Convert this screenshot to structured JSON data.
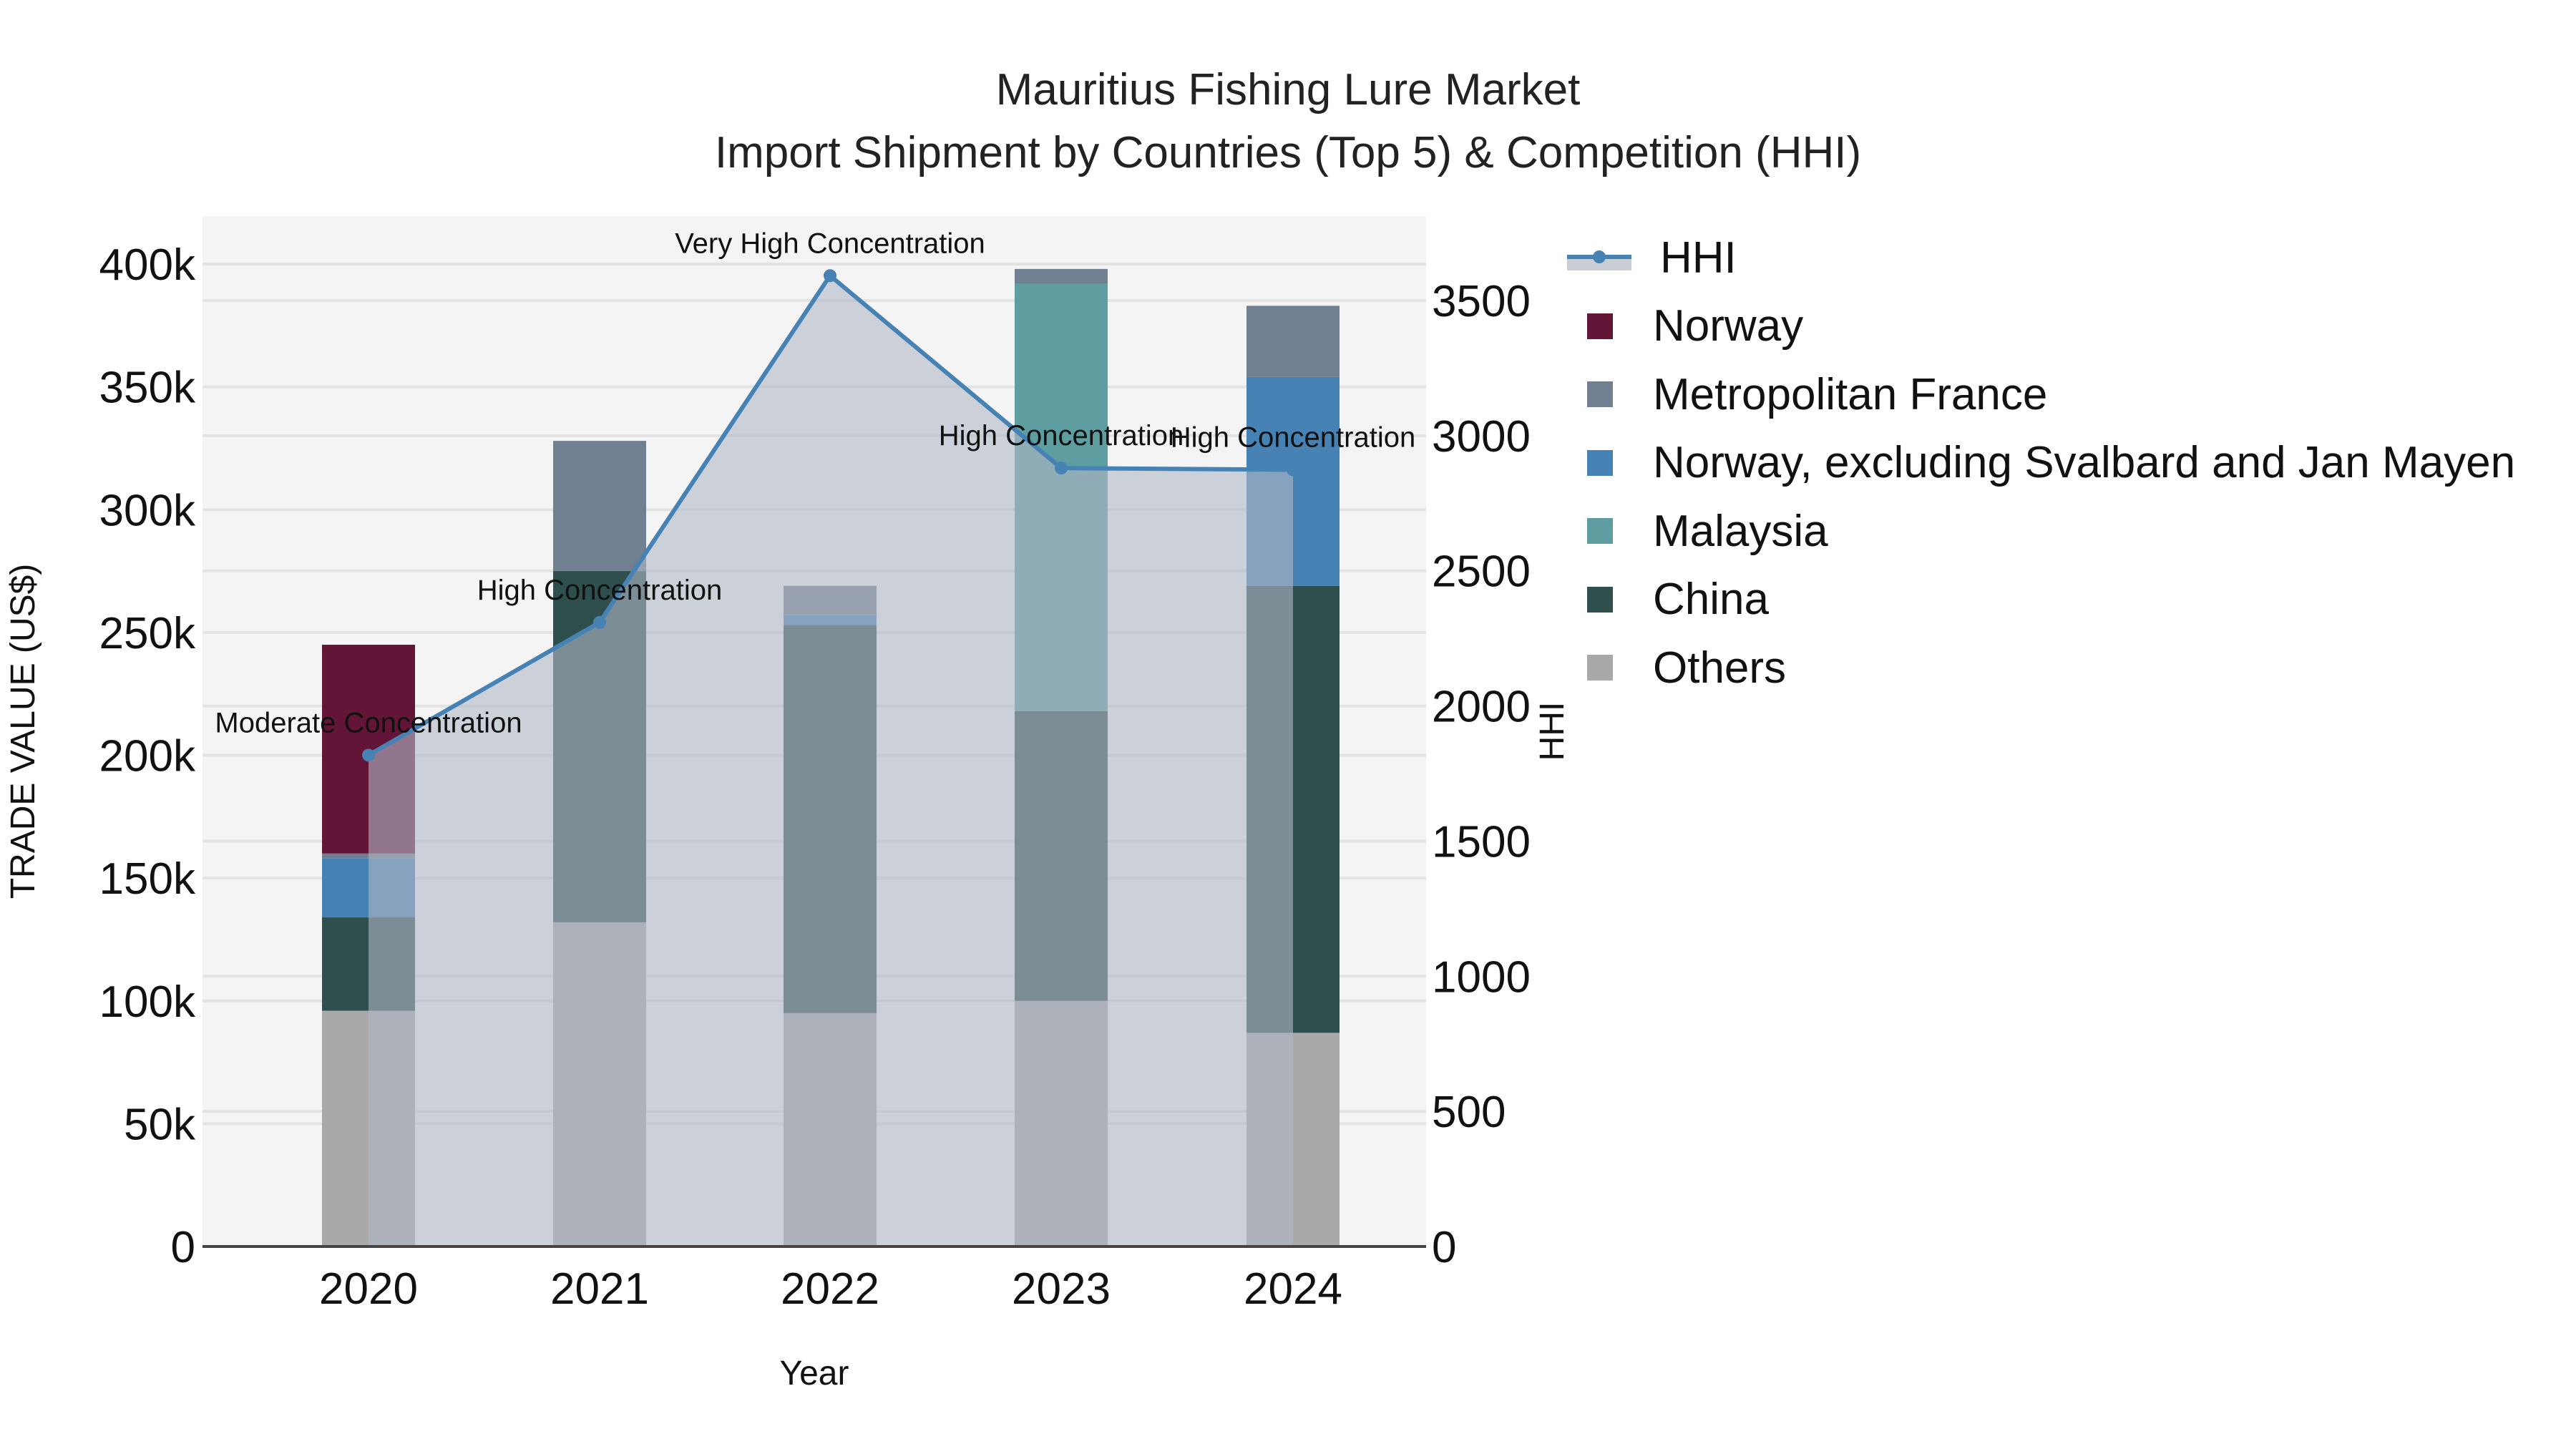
{
  "title": {
    "line1": "Mauritius Fishing Lure Market",
    "line2": "Import Shipment by Countries (Top 5) & Competition (HHI)"
  },
  "axes": {
    "x_title": "Year",
    "y_left_title": "TRADE VALUE (US$)",
    "y_right_title": "HHI",
    "x_ticks": [
      "2020",
      "2021",
      "2022",
      "2023",
      "2024"
    ],
    "y_left_ticks": [
      "0",
      "50k",
      "100k",
      "150k",
      "200k",
      "250k",
      "300k",
      "350k",
      "400k"
    ],
    "y_right_ticks": [
      "0",
      "500",
      "1000",
      "1500",
      "2000",
      "2500",
      "3000",
      "3500"
    ]
  },
  "legend": [
    {
      "label": "HHI",
      "color": "#4682b4",
      "kind": "line"
    },
    {
      "label": "Norway",
      "color": "#631537",
      "kind": "bar"
    },
    {
      "label": "Metropolitan France",
      "color": "#708090",
      "kind": "bar"
    },
    {
      "label": "Norway, excluding Svalbard and Jan Mayen",
      "color": "#4682b4",
      "kind": "bar"
    },
    {
      "label": "Malaysia",
      "color": "#5f9ea0",
      "kind": "bar"
    },
    {
      "label": "China",
      "color": "#2f4f4f",
      "kind": "bar"
    },
    {
      "label": "Others",
      "color": "#a9a9a9",
      "kind": "bar"
    }
  ],
  "annotations": [
    "Moderate Concentration",
    "High Concentration",
    "Very High Concentration",
    "High Concentration",
    "High Concentration"
  ],
  "chart_data": {
    "type": "bar",
    "stacked": true,
    "title": "Mauritius Fishing Lure Market — Import Shipment by Countries (Top 5) & Competition (HHI)",
    "xlabel": "Year",
    "ylabel": "TRADE VALUE (US$)",
    "y2label": "HHI",
    "categories": [
      "2020",
      "2021",
      "2022",
      "2023",
      "2024"
    ],
    "ylim": [
      0,
      420000
    ],
    "y2lim": [
      0,
      3800
    ],
    "grid": true,
    "legend_position": "right",
    "series": [
      {
        "name": "Others",
        "color": "#a9a9a9",
        "values": [
          96000,
          132000,
          95000,
          100000,
          87000
        ]
      },
      {
        "name": "China",
        "color": "#2f4f4f",
        "values": [
          38000,
          143000,
          158000,
          118000,
          182000
        ]
      },
      {
        "name": "Norway, excluding Svalbard and Jan Mayen",
        "color": "#4682b4",
        "values": [
          24000,
          0,
          4000,
          0,
          85000
        ]
      },
      {
        "name": "Malaysia",
        "color": "#5f9ea0",
        "values": [
          0,
          0,
          0,
          174000,
          0
        ]
      },
      {
        "name": "Metropolitan France",
        "color": "#708090",
        "values": [
          2000,
          53000,
          12000,
          6000,
          29000
        ]
      },
      {
        "name": "Norway",
        "color": "#631537",
        "values": [
          85000,
          0,
          0,
          0,
          0
        ]
      }
    ],
    "line_series": {
      "name": "HHI",
      "axis": "y2",
      "color": "#4682b4",
      "fill": "tozeroy",
      "values": [
        1818,
        2309,
        3592,
        2880,
        2874
      ],
      "labels": [
        "Moderate Concentration",
        "High Concentration",
        "Very High Concentration",
        "High Concentration",
        "High Concentration"
      ]
    }
  }
}
